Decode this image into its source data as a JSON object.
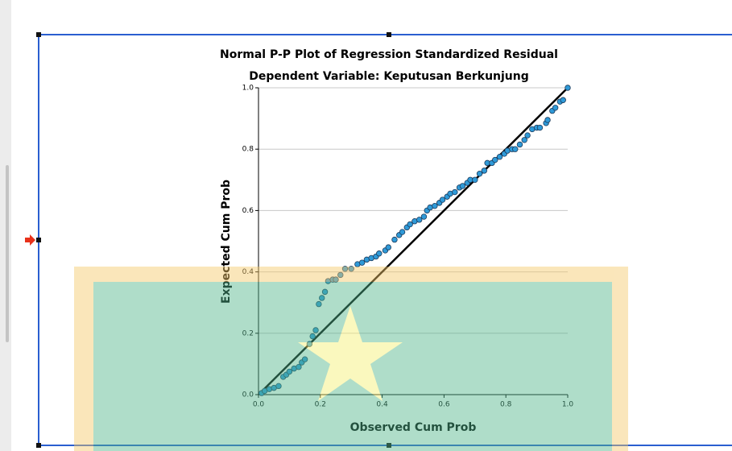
{
  "chart_data": {
    "type": "scatter",
    "title": "Normal P-P Plot of Regression Standardized Residual",
    "subtitle": "Dependent Variable: Keputusan Berkunjung",
    "x_label": "Observed Cum Prob",
    "y_label": "Expected Cum Prob",
    "xlim": [
      0,
      1
    ],
    "ylim": [
      0,
      1
    ],
    "xticks": [
      {
        "value": 0,
        "label": "0.0"
      },
      {
        "value": 0.2,
        "label": "0.2"
      },
      {
        "value": 0.4,
        "label": "0.4"
      },
      {
        "value": 0.6,
        "label": "0.6"
      },
      {
        "value": 0.8,
        "label": "0.8"
      },
      {
        "value": 1,
        "label": "1.0"
      }
    ],
    "yticks": [
      {
        "value": 0,
        "label": "0.0"
      },
      {
        "value": 0.2,
        "label": "0.2"
      },
      {
        "value": 0.4,
        "label": "0.4"
      },
      {
        "value": 0.6,
        "label": "0.6"
      },
      {
        "value": 0.8,
        "label": "0.8"
      },
      {
        "value": 1,
        "label": "1.0"
      }
    ],
    "grid": true,
    "reference_line": {
      "x": [
        0,
        1
      ],
      "y": [
        0,
        1
      ],
      "color": "#000000"
    },
    "series": [
      {
        "color": "#2f9ad8",
        "x": [
          0.01,
          0.02,
          0.035,
          0.05,
          0.065,
          0.08,
          0.09,
          0.1,
          0.115,
          0.13,
          0.14,
          0.15,
          0.165,
          0.175,
          0.185,
          0.195,
          0.205,
          0.215,
          0.225,
          0.24,
          0.25,
          0.265,
          0.28,
          0.3,
          0.32,
          0.335,
          0.35,
          0.365,
          0.38,
          0.39,
          0.41,
          0.42,
          0.44,
          0.455,
          0.465,
          0.48,
          0.49,
          0.505,
          0.52,
          0.535,
          0.545,
          0.555,
          0.57,
          0.585,
          0.595,
          0.61,
          0.62,
          0.635,
          0.65,
          0.66,
          0.675,
          0.685,
          0.7,
          0.715,
          0.73,
          0.74,
          0.755,
          0.765,
          0.78,
          0.795,
          0.805,
          0.82,
          0.83,
          0.845,
          0.86,
          0.87,
          0.885,
          0.9,
          0.91,
          0.93,
          0.935,
          0.95,
          0.96,
          0.975,
          0.985,
          1.0
        ],
        "values": [
          0.005,
          0.012,
          0.018,
          0.022,
          0.028,
          0.058,
          0.065,
          0.075,
          0.085,
          0.09,
          0.105,
          0.115,
          0.165,
          0.19,
          0.21,
          0.295,
          0.315,
          0.335,
          0.37,
          0.375,
          0.375,
          0.39,
          0.41,
          0.41,
          0.425,
          0.43,
          0.44,
          0.445,
          0.45,
          0.46,
          0.47,
          0.48,
          0.505,
          0.52,
          0.53,
          0.545,
          0.555,
          0.565,
          0.57,
          0.58,
          0.6,
          0.61,
          0.615,
          0.625,
          0.635,
          0.645,
          0.655,
          0.66,
          0.675,
          0.68,
          0.69,
          0.7,
          0.7,
          0.72,
          0.73,
          0.755,
          0.755,
          0.765,
          0.775,
          0.785,
          0.795,
          0.8,
          0.8,
          0.815,
          0.83,
          0.845,
          0.865,
          0.87,
          0.87,
          0.885,
          0.895,
          0.925,
          0.935,
          0.955,
          0.96,
          1.0
        ]
      }
    ]
  }
}
